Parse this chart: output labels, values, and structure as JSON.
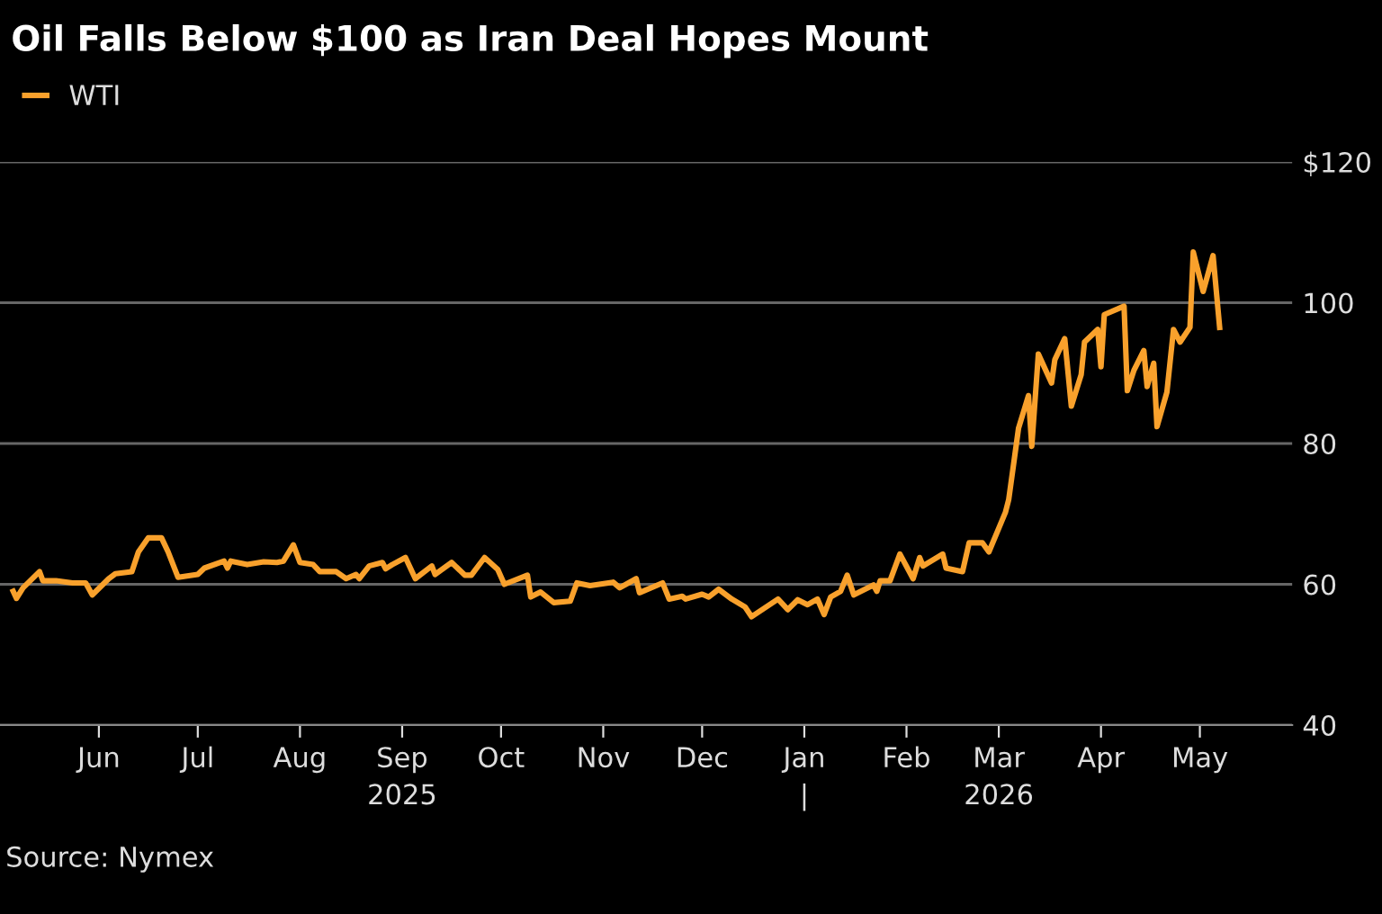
{
  "chart_data": {
    "type": "line",
    "title": "Oil Falls Below $100 as Iran Deal Hopes Mount",
    "legend": "top left",
    "grid": "y",
    "marker": "none",
    "line_style": "solid",
    "series": [
      {
        "name": "WTI",
        "color": "#f9a12c",
        "x": [
          "2025-05-06",
          "2025-05-07",
          "2025-05-09",
          "2025-05-14",
          "2025-05-15",
          "2025-05-19",
          "2025-05-24",
          "2025-05-28",
          "2025-05-30",
          "2025-06-04",
          "2025-06-06",
          "2025-06-11",
          "2025-06-13",
          "2025-06-16",
          "2025-06-20",
          "2025-06-22",
          "2025-06-25",
          "2025-07-01",
          "2025-07-03",
          "2025-07-09",
          "2025-07-10",
          "2025-07-11",
          "2025-07-16",
          "2025-07-21",
          "2025-07-25",
          "2025-07-27",
          "2025-07-30",
          "2025-08-01",
          "2025-08-05",
          "2025-08-07",
          "2025-08-12",
          "2025-08-15",
          "2025-08-18",
          "2025-08-19",
          "2025-08-22",
          "2025-08-26",
          "2025-08-27",
          "2025-08-29",
          "2025-09-02",
          "2025-09-05",
          "2025-09-10",
          "2025-09-11",
          "2025-09-16",
          "2025-09-20",
          "2025-09-22",
          "2025-09-26",
          "2025-09-30",
          "2025-10-02",
          "2025-10-09",
          "2025-10-10",
          "2025-10-13",
          "2025-10-17",
          "2025-10-22",
          "2025-10-24",
          "2025-10-28",
          "2025-11-04",
          "2025-11-06",
          "2025-11-11",
          "2025-11-12",
          "2025-11-19",
          "2025-11-21",
          "2025-11-25",
          "2025-11-26",
          "2025-12-01",
          "2025-12-03",
          "2025-12-06",
          "2025-12-10",
          "2025-12-14",
          "2025-12-16",
          "2025-12-24",
          "2025-12-27",
          "2025-12-30",
          "2026-01-02",
          "2026-01-05",
          "2026-01-07",
          "2026-01-09",
          "2026-01-12",
          "2026-01-14",
          "2026-01-16",
          "2026-01-22",
          "2026-01-23",
          "2026-01-24",
          "2026-01-27",
          "2026-01-30",
          "2026-02-03",
          "2026-02-05",
          "2026-02-06",
          "2026-02-12",
          "2026-02-13",
          "2026-02-18",
          "2026-02-20",
          "2026-02-24",
          "2026-02-26",
          "2026-03-03",
          "2026-03-04",
          "2026-03-07",
          "2026-03-10",
          "2026-03-11",
          "2026-03-13",
          "2026-03-17",
          "2026-03-18",
          "2026-03-21",
          "2026-03-23",
          "2026-03-26",
          "2026-03-27",
          "2026-03-31",
          "2026-04-01",
          "2026-04-02",
          "2026-04-08",
          "2026-04-09",
          "2026-04-11",
          "2026-04-14",
          "2026-04-15",
          "2026-04-17",
          "2026-04-18",
          "2026-04-21",
          "2026-04-23",
          "2026-04-25",
          "2026-04-28",
          "2026-04-29",
          "2026-05-02",
          "2026-05-05",
          "2026-05-07"
        ],
        "values": [
          59.0,
          58.0,
          59.5,
          61.8,
          60.5,
          60.5,
          60.2,
          60.2,
          58.5,
          60.8,
          61.5,
          61.8,
          64.6,
          66.6,
          66.6,
          64.6,
          61.0,
          61.4,
          62.3,
          63.3,
          62.3,
          63.3,
          62.8,
          63.2,
          63.1,
          63.3,
          65.6,
          63.1,
          62.8,
          61.8,
          61.8,
          60.8,
          61.4,
          60.8,
          62.6,
          63.1,
          62.2,
          62.8,
          63.8,
          60.8,
          62.6,
          61.4,
          63.1,
          61.3,
          61.3,
          63.8,
          62.1,
          60.0,
          61.3,
          58.2,
          58.9,
          57.4,
          57.6,
          60.2,
          59.8,
          60.3,
          59.5,
          60.8,
          58.8,
          60.2,
          57.9,
          58.3,
          57.9,
          58.6,
          58.2,
          59.3,
          57.9,
          56.8,
          55.4,
          57.9,
          56.4,
          57.8,
          57.1,
          57.9,
          55.7,
          58.2,
          59.0,
          61.3,
          58.5,
          59.9,
          59.0,
          60.5,
          60.5,
          64.3,
          60.8,
          63.8,
          62.6,
          64.3,
          62.3,
          61.8,
          65.9,
          65.9,
          64.6,
          70.2,
          72.0,
          82.2,
          86.8,
          79.6,
          92.7,
          88.6,
          91.9,
          94.9,
          85.3,
          89.8,
          94.4,
          96.2,
          90.9,
          98.3,
          99.5,
          87.5,
          90.4,
          93.2,
          88.1,
          91.4,
          82.4,
          87.3,
          96.2,
          94.4,
          96.5,
          107.2,
          101.6,
          106.7,
          96.5
        ]
      }
    ],
    "xlim": [
      "2025-05-02",
      "2026-05-29"
    ],
    "xticks": [
      {
        "value": "2025-06-01",
        "label": "Jun"
      },
      {
        "value": "2025-07-01",
        "label": "Jul"
      },
      {
        "value": "2025-08-01",
        "label": "Aug"
      },
      {
        "value": "2025-09-01",
        "label": "Sep\n2025"
      },
      {
        "value": "2025-10-01",
        "label": "Oct"
      },
      {
        "value": "2025-11-01",
        "label": "Nov"
      },
      {
        "value": "2025-12-01",
        "label": "Dec"
      },
      {
        "value": "2026-01-01",
        "label": "Jan\n|"
      },
      {
        "value": "2026-02-01",
        "label": "Feb"
      },
      {
        "value": "2026-03-01",
        "label": "Mar\n2026"
      },
      {
        "value": "2026-04-01",
        "label": "Apr"
      },
      {
        "value": "2026-05-01",
        "label": "May"
      }
    ],
    "ylim": [
      40,
      120
    ],
    "yticks": [
      40,
      60,
      80,
      100,
      {
        "value": 120,
        "label": "$120"
      }
    ],
    "annotations": [
      "Source: Nymex"
    ]
  }
}
